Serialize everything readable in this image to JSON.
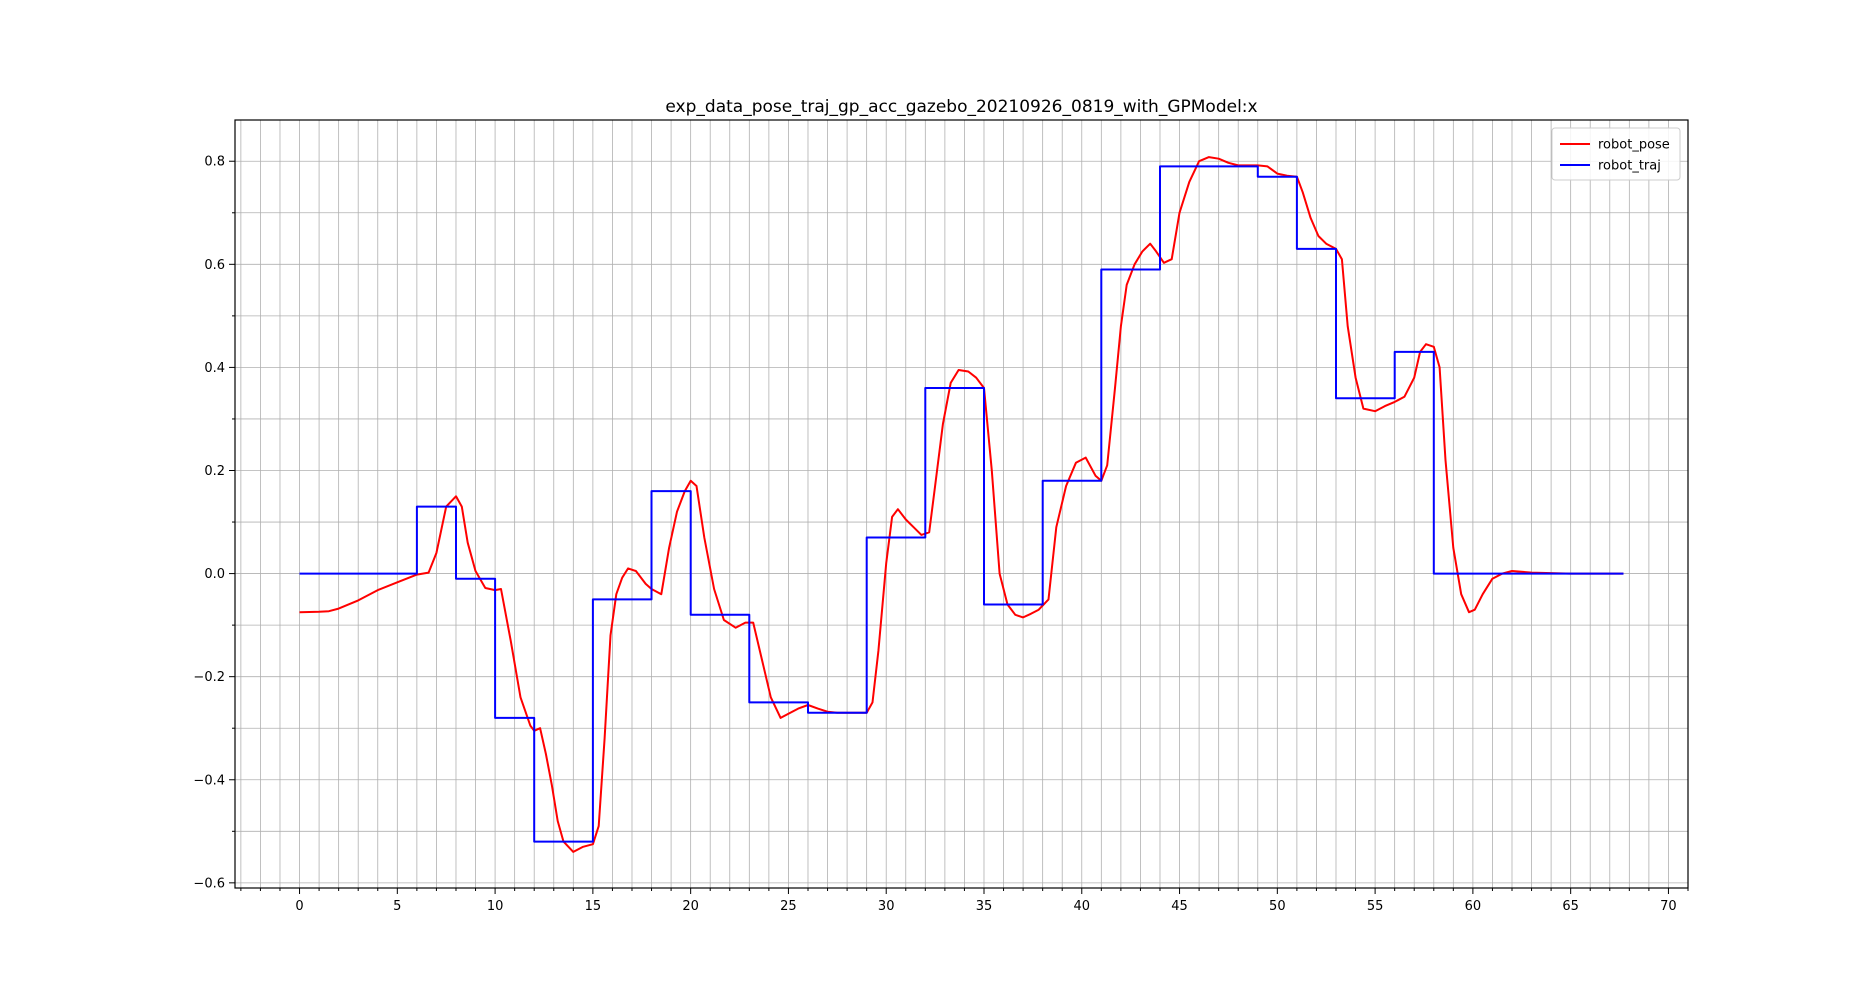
{
  "chart_data": {
    "type": "line",
    "title": "exp_data_pose_traj_gp_acc_gazebo_20210926_0819_with_GPModel:x",
    "xlabel": "",
    "ylabel": "",
    "xlim": [
      -3.3,
      71.0
    ],
    "ylim": [
      -0.61,
      0.88
    ],
    "grid": true,
    "legend_position": "top-right",
    "x_major_ticks": [
      0,
      5,
      10,
      15,
      20,
      25,
      30,
      35,
      40,
      45,
      50,
      55,
      60,
      65,
      70
    ],
    "y_major_ticks": [
      -0.6,
      -0.4,
      -0.2,
      0.0,
      0.2,
      0.4,
      0.6,
      0.8
    ],
    "x_tick_labels": [
      "0",
      "5",
      "10",
      "15",
      "20",
      "25",
      "30",
      "35",
      "40",
      "45",
      "50",
      "55",
      "60",
      "65",
      "70"
    ],
    "y_tick_labels": [
      "−0.6",
      "−0.4",
      "−0.2",
      "0.0",
      "0.2",
      "0.4",
      "0.6",
      "0.8"
    ],
    "series": [
      {
        "name": "robot_pose",
        "color": "#ff0000",
        "x": [
          0,
          1,
          1.5,
          2,
          3,
          4,
          5,
          6,
          6.3,
          6.6,
          7,
          7.5,
          8,
          8.3,
          8.6,
          9,
          9.5,
          10,
          10.3,
          10.8,
          11.3,
          11.8,
          12,
          12.3,
          12.6,
          12.9,
          13.2,
          13.5,
          14,
          14.5,
          15,
          15.3,
          15.6,
          15.9,
          16.2,
          16.5,
          16.8,
          17.2,
          17.7,
          18,
          18.5,
          18.9,
          19.3,
          19.7,
          20,
          20.3,
          20.7,
          21.2,
          21.7,
          22.3,
          22.8,
          23.2,
          23.6,
          24.1,
          24.6,
          25,
          25.5,
          26,
          26.5,
          27,
          27.5,
          28,
          29,
          29.3,
          29.6,
          30,
          30.3,
          30.6,
          31,
          31.4,
          31.8,
          32.2,
          32.5,
          32.9,
          33.3,
          33.7,
          34.2,
          34.6,
          35,
          35.4,
          35.8,
          36.2,
          36.6,
          37,
          37.4,
          37.8,
          38.3,
          38.7,
          39.2,
          39.7,
          40.2,
          40.7,
          41,
          41.3,
          41.7,
          42,
          42.3,
          42.7,
          43.1,
          43.5,
          43.8,
          44.2,
          44.6,
          45,
          45.5,
          46,
          46.5,
          47,
          47.5,
          48,
          49,
          49.5,
          50,
          50.5,
          51,
          51.3,
          51.7,
          52.1,
          52.5,
          53,
          53.3,
          53.6,
          54,
          54.4,
          55,
          55.5,
          56,
          56.5,
          57,
          57.3,
          57.6,
          58,
          58.3,
          58.6,
          59,
          59.4,
          59.8,
          60.1,
          60.5,
          61,
          61.5,
          62,
          63,
          64,
          65,
          67.7
        ],
        "y": [
          -0.075,
          -0.074,
          -0.073,
          -0.068,
          -0.052,
          -0.032,
          -0.017,
          -0.002,
          0.0,
          0.002,
          0.04,
          0.13,
          0.15,
          0.13,
          0.06,
          0.005,
          -0.028,
          -0.032,
          -0.03,
          -0.13,
          -0.24,
          -0.295,
          -0.305,
          -0.3,
          -0.35,
          -0.41,
          -0.48,
          -0.52,
          -0.54,
          -0.53,
          -0.525,
          -0.49,
          -0.32,
          -0.12,
          -0.04,
          -0.008,
          0.01,
          0.005,
          -0.02,
          -0.03,
          -0.04,
          0.05,
          0.12,
          0.16,
          0.18,
          0.17,
          0.07,
          -0.03,
          -0.09,
          -0.105,
          -0.095,
          -0.095,
          -0.16,
          -0.24,
          -0.28,
          -0.272,
          -0.262,
          -0.255,
          -0.262,
          -0.268,
          -0.27,
          -0.27,
          -0.27,
          -0.25,
          -0.15,
          0.02,
          0.11,
          0.125,
          0.105,
          0.09,
          0.075,
          0.08,
          0.17,
          0.29,
          0.37,
          0.395,
          0.392,
          0.38,
          0.36,
          0.2,
          0.0,
          -0.06,
          -0.08,
          -0.085,
          -0.078,
          -0.07,
          -0.05,
          0.09,
          0.17,
          0.215,
          0.225,
          0.19,
          0.18,
          0.21,
          0.36,
          0.48,
          0.56,
          0.6,
          0.625,
          0.64,
          0.625,
          0.603,
          0.61,
          0.7,
          0.76,
          0.8,
          0.808,
          0.805,
          0.797,
          0.792,
          0.792,
          0.79,
          0.776,
          0.772,
          0.77,
          0.74,
          0.69,
          0.655,
          0.64,
          0.63,
          0.61,
          0.48,
          0.38,
          0.32,
          0.315,
          0.325,
          0.333,
          0.343,
          0.38,
          0.43,
          0.445,
          0.44,
          0.4,
          0.22,
          0.05,
          -0.04,
          -0.075,
          -0.07,
          -0.04,
          -0.01,
          0.0,
          0.005,
          0.002,
          0.001,
          0.0,
          0.0
        ]
      },
      {
        "name": "robot_traj",
        "color": "#0000ff",
        "step": true,
        "x": [
          0,
          6,
          6,
          8,
          8,
          10,
          10,
          12,
          12,
          15,
          15,
          18,
          18,
          20,
          20,
          23,
          23,
          26,
          26,
          29,
          29,
          32,
          32,
          35,
          35,
          38,
          38,
          41,
          41,
          44,
          44,
          49,
          49,
          51,
          51,
          53,
          53,
          56,
          56,
          58,
          58,
          67.7
        ],
        "y": [
          0.0,
          0.0,
          0.13,
          0.13,
          -0.01,
          -0.01,
          -0.28,
          -0.28,
          -0.52,
          -0.52,
          -0.05,
          -0.05,
          0.16,
          0.16,
          -0.08,
          -0.08,
          -0.25,
          -0.25,
          -0.27,
          -0.27,
          0.07,
          0.07,
          0.36,
          0.36,
          -0.06,
          -0.06,
          0.18,
          0.18,
          0.59,
          0.59,
          0.79,
          0.79,
          0.77,
          0.77,
          0.63,
          0.63,
          0.34,
          0.34,
          0.43,
          0.43,
          0.0,
          0.0
        ]
      }
    ]
  }
}
